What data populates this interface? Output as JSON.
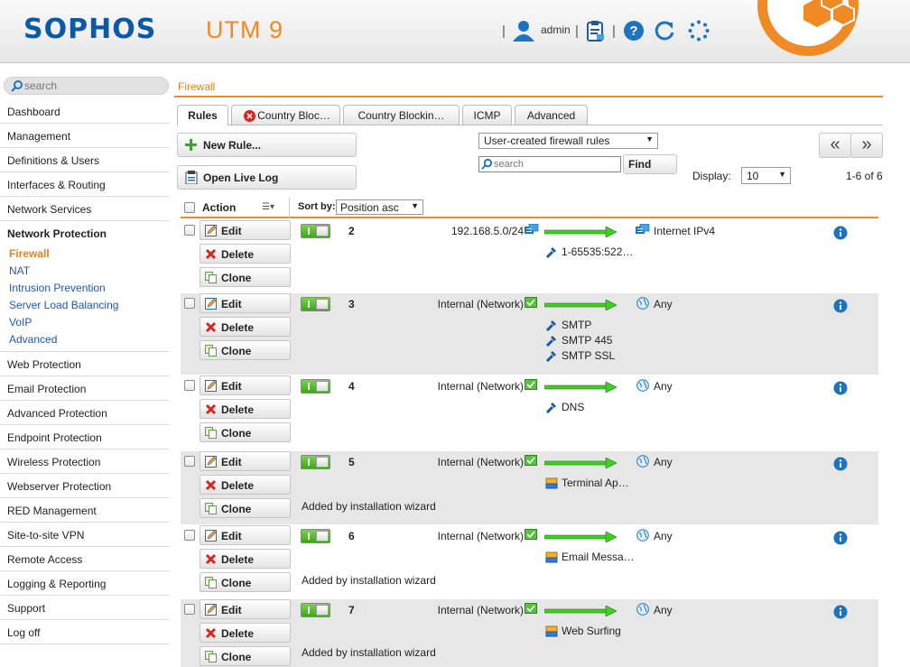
{
  "header": {
    "logo": "SOPHOS",
    "product": "UTM 9",
    "user": "admin",
    "brand_color": "#0a5aa6",
    "accent_color": "#f08a24"
  },
  "search": {
    "placeholder": "search"
  },
  "breadcrumb": "Firewall",
  "sidebar": {
    "top": [
      "Dashboard",
      "Management",
      "Definitions & Users",
      "Interfaces & Routing",
      "Network Services"
    ],
    "section": "Network Protection",
    "subitems": [
      "Firewall",
      "NAT",
      "Intrusion Prevention",
      "Server Load Balancing",
      "VoIP",
      "Advanced"
    ],
    "bottom": [
      "Web Protection",
      "Email Protection",
      "Advanced Protection",
      "Endpoint Protection",
      "Wireless Protection",
      "Webserver Protection",
      "RED Management",
      "Site-to-site VPN",
      "Remote Access",
      "Logging & Reporting",
      "Support",
      "Log off"
    ]
  },
  "tabs": [
    "Rules",
    "Country Bloc…",
    "Country Blockin…",
    "ICMP",
    "Advanced"
  ],
  "toolbar": {
    "new_rule": "New Rule...",
    "open_live_log": "Open Live Log",
    "filter": "User-created firewall rules",
    "search_placeholder": "search",
    "find": "Find",
    "display_label": "Display:",
    "display_value": "10",
    "page_count": "1-6 of 6",
    "prev": "«",
    "next": "»"
  },
  "list_header": {
    "action": "Action",
    "sort_by": "Sort by:",
    "sort_value": "Position asc"
  },
  "actions": {
    "edit": "Edit",
    "delete": "Delete",
    "clone": "Clone"
  },
  "rules": [
    {
      "position": "2",
      "source": "192.168.5.0/24",
      "destination": "Internet IPv4",
      "services": [
        "1-65535:522…"
      ],
      "comment": ""
    },
    {
      "position": "3",
      "source": "Internal (Network)",
      "destination": "Any",
      "services": [
        "SMTP",
        "SMTP 445",
        "SMTP SSL"
      ],
      "comment": ""
    },
    {
      "position": "4",
      "source": "Internal (Network)",
      "destination": "Any",
      "services": [
        "DNS"
      ],
      "comment": ""
    },
    {
      "position": "5",
      "source": "Internal (Network)",
      "destination": "Any",
      "services": [
        "Terminal Ap…"
      ],
      "comment": "Added by installation wizard"
    },
    {
      "position": "6",
      "source": "Internal (Network)",
      "destination": "Any",
      "services": [
        "Email Messa…"
      ],
      "comment": "Added by installation wizard"
    },
    {
      "position": "7",
      "source": "Internal (Network)",
      "destination": "Any",
      "services": [
        "Web Surfing"
      ],
      "comment": "Added by installation wizard"
    }
  ]
}
